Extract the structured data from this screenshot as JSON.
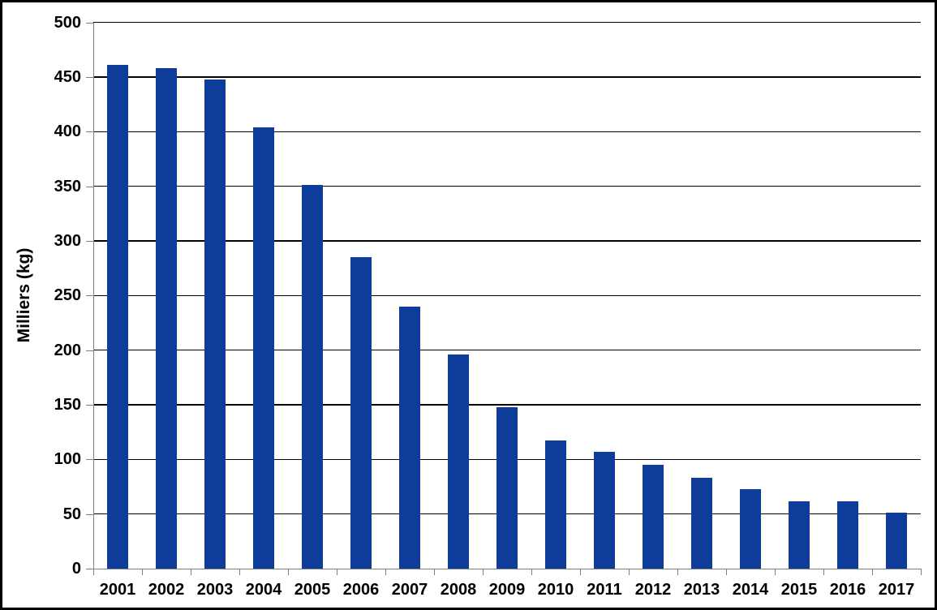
{
  "chart_data": {
    "type": "bar",
    "title": "",
    "xlabel": "",
    "ylabel": "Milliers (kg)",
    "categories": [
      "2001",
      "2002",
      "2003",
      "2004",
      "2005",
      "2006",
      "2007",
      "2008",
      "2009",
      "2010",
      "2011",
      "2012",
      "2013",
      "2014",
      "2015",
      "2016",
      "2017"
    ],
    "values": [
      461,
      458,
      448,
      404,
      351,
      285,
      240,
      196,
      148,
      117,
      107,
      95,
      83,
      73,
      62,
      62,
      51
    ],
    "ylim": [
      0,
      500
    ],
    "ytick_step": 50,
    "yticks": [
      0,
      50,
      100,
      150,
      200,
      250,
      300,
      350,
      400,
      450,
      500
    ],
    "grid": "horizontal-black",
    "legend_position": "none",
    "bar_color": "#0d3c9b",
    "gridline_color": "#000000",
    "axis_color": "#7f7f7f",
    "text_color": "#000000",
    "background_color": "#ffffff",
    "frame_border_color": "#000000"
  }
}
